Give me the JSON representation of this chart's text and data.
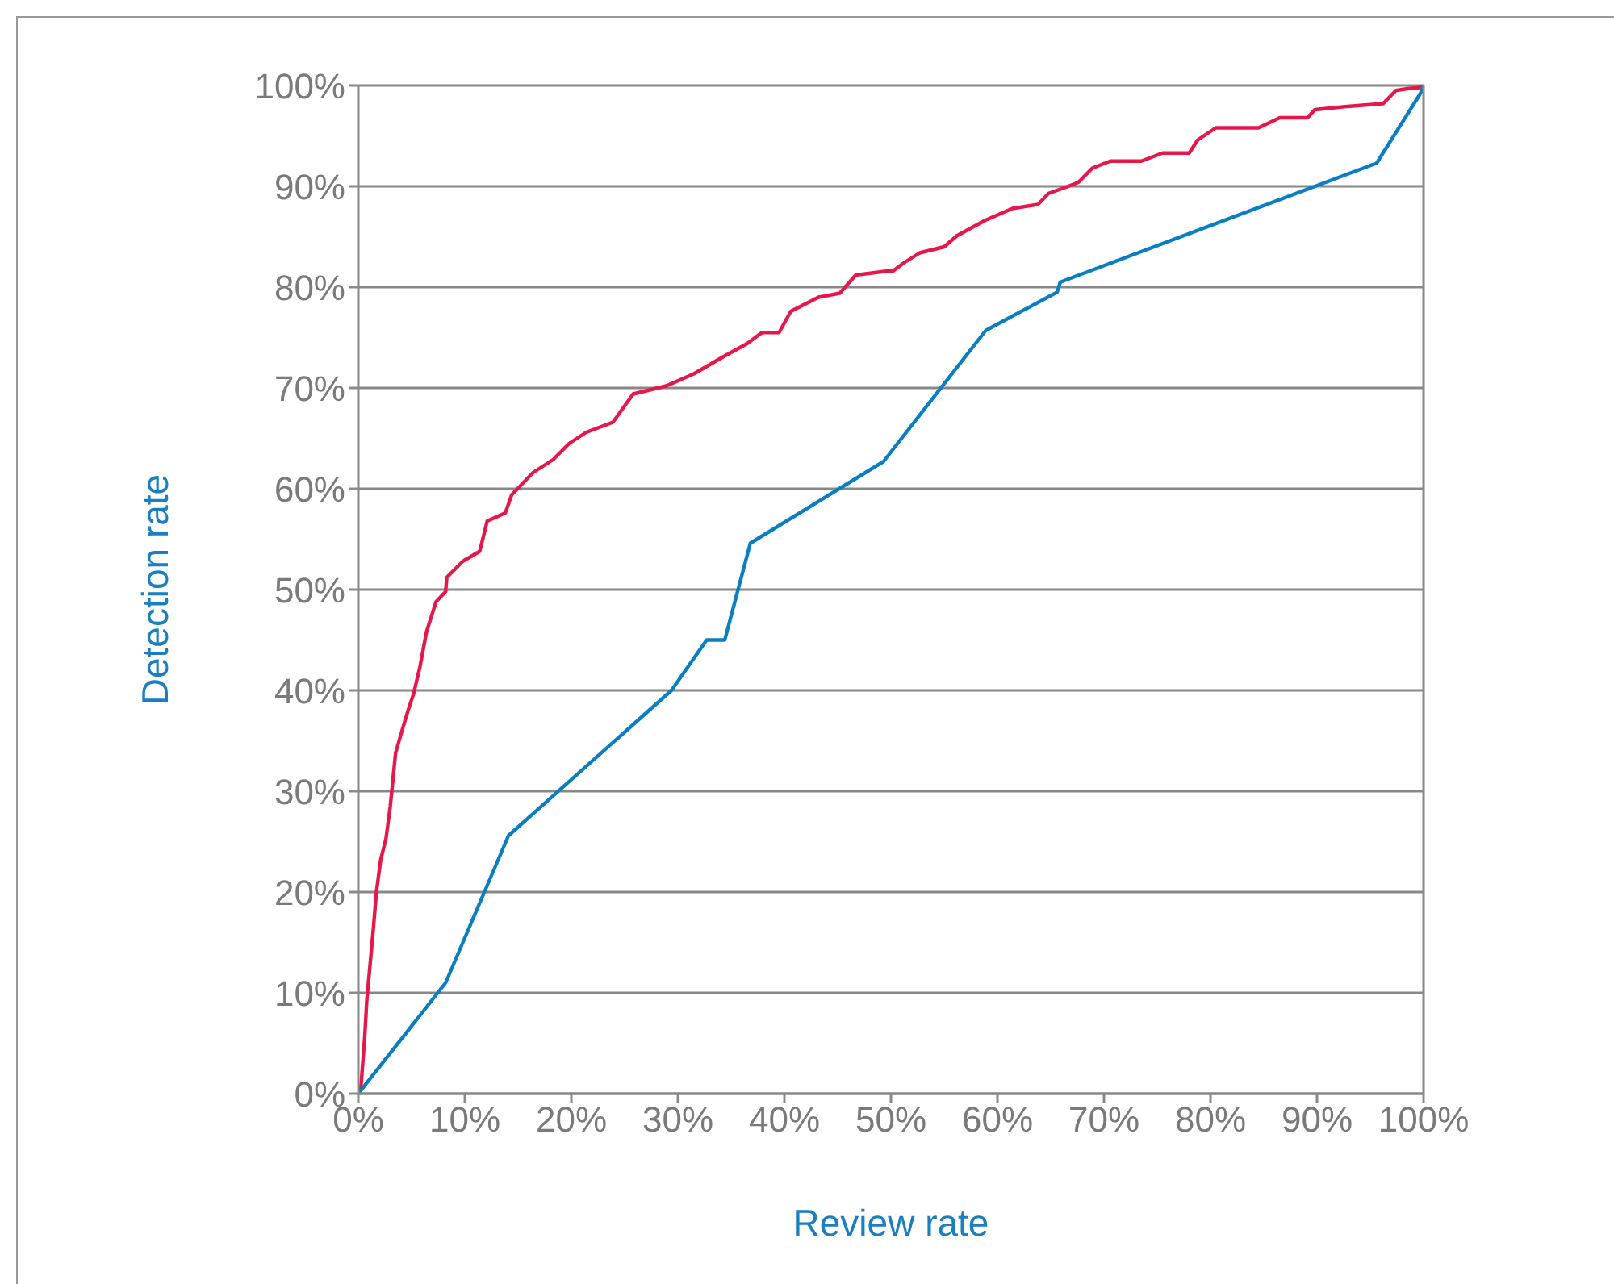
{
  "chart_data": {
    "type": "line",
    "xlabel": "Review rate",
    "ylabel": "Detection rate",
    "xlim": [
      0,
      100
    ],
    "ylim": [
      0,
      100
    ],
    "xticks": [
      {
        "value": 0,
        "label": "0%"
      },
      {
        "value": 10,
        "label": "10%"
      },
      {
        "value": 20,
        "label": "20%"
      },
      {
        "value": 30,
        "label": "30%"
      },
      {
        "value": 40,
        "label": "40%"
      },
      {
        "value": 50,
        "label": "50%"
      },
      {
        "value": 60,
        "label": "60%"
      },
      {
        "value": 70,
        "label": "70%"
      },
      {
        "value": 80,
        "label": "80%"
      },
      {
        "value": 90,
        "label": "90%"
      },
      {
        "value": 100,
        "label": "100%"
      }
    ],
    "yticks": [
      {
        "value": 0,
        "label": "0%"
      },
      {
        "value": 10,
        "label": "10%"
      },
      {
        "value": 20,
        "label": "20%"
      },
      {
        "value": 30,
        "label": "30%"
      },
      {
        "value": 40,
        "label": "40%"
      },
      {
        "value": 50,
        "label": "50%"
      },
      {
        "value": 60,
        "label": "60%"
      },
      {
        "value": 70,
        "label": "70%"
      },
      {
        "value": 80,
        "label": "80%"
      },
      {
        "value": 90,
        "label": "90%"
      },
      {
        "value": 100,
        "label": "100%"
      }
    ],
    "grid": "y",
    "marker": "none",
    "line_style": "solid",
    "series": [
      {
        "color": "#e8174a",
        "x": [
          0.2,
          0.6,
          0.8,
          1.4,
          1.7,
          2.1,
          2.6,
          3,
          3.5,
          4.1,
          4.7,
          5.2,
          5.8,
          6.4,
          7.3,
          8.2,
          8.3,
          9.8,
          11.4,
          12.1,
          13.8,
          14.4,
          16.4,
          18.3,
          19.8,
          21.4,
          23.9,
          25.8,
          28.9,
          31.5,
          34.1,
          36.5,
          37.9,
          39.5,
          40.6,
          43.2,
          45.2,
          46.7,
          49.7,
          50.2,
          51.2,
          52.7,
          55,
          56.2,
          58.8,
          61.4,
          63.8,
          64.8,
          66.4,
          67.6,
          68.9,
          70.6,
          73.5,
          75.5,
          78,
          78.8,
          80.5,
          84.5,
          86.5,
          89.1,
          89.8,
          92.6,
          96.2,
          97.4,
          98.6,
          99.7,
          100
        ],
        "values": [
          0,
          5.6,
          9.3,
          16.2,
          20,
          23.2,
          25.3,
          28.5,
          33.8,
          36,
          38.1,
          39.7,
          42.4,
          45.8,
          48.8,
          49.8,
          51.2,
          52.8,
          53.8,
          56.8,
          57.6,
          59.4,
          61.6,
          62.9,
          64.5,
          65.6,
          66.6,
          69.4,
          70.2,
          71.4,
          73,
          74.4,
          75.5,
          75.5,
          77.6,
          79,
          79.4,
          81.2,
          81.6,
          81.6,
          82.4,
          83.4,
          84,
          85.1,
          86.6,
          87.8,
          88.2,
          89.3,
          89.9,
          90.4,
          91.8,
          92.5,
          92.5,
          93.3,
          93.3,
          94.6,
          95.8,
          95.8,
          96.8,
          96.8,
          97.6,
          97.9,
          98.2,
          99.5,
          99.7,
          99.8,
          100
        ]
      },
      {
        "color": "#0a7ec2",
        "x": [
          0,
          8.2,
          14.1,
          29.4,
          32.7,
          34.4,
          36.8,
          49.3,
          58.9,
          65.6,
          65.9,
          95.6,
          99.7,
          100
        ],
        "values": [
          0,
          11,
          25.6,
          40,
          45,
          45,
          54.6,
          62.7,
          75.7,
          79.5,
          80.5,
          92.3,
          99.2,
          100
        ]
      }
    ]
  }
}
